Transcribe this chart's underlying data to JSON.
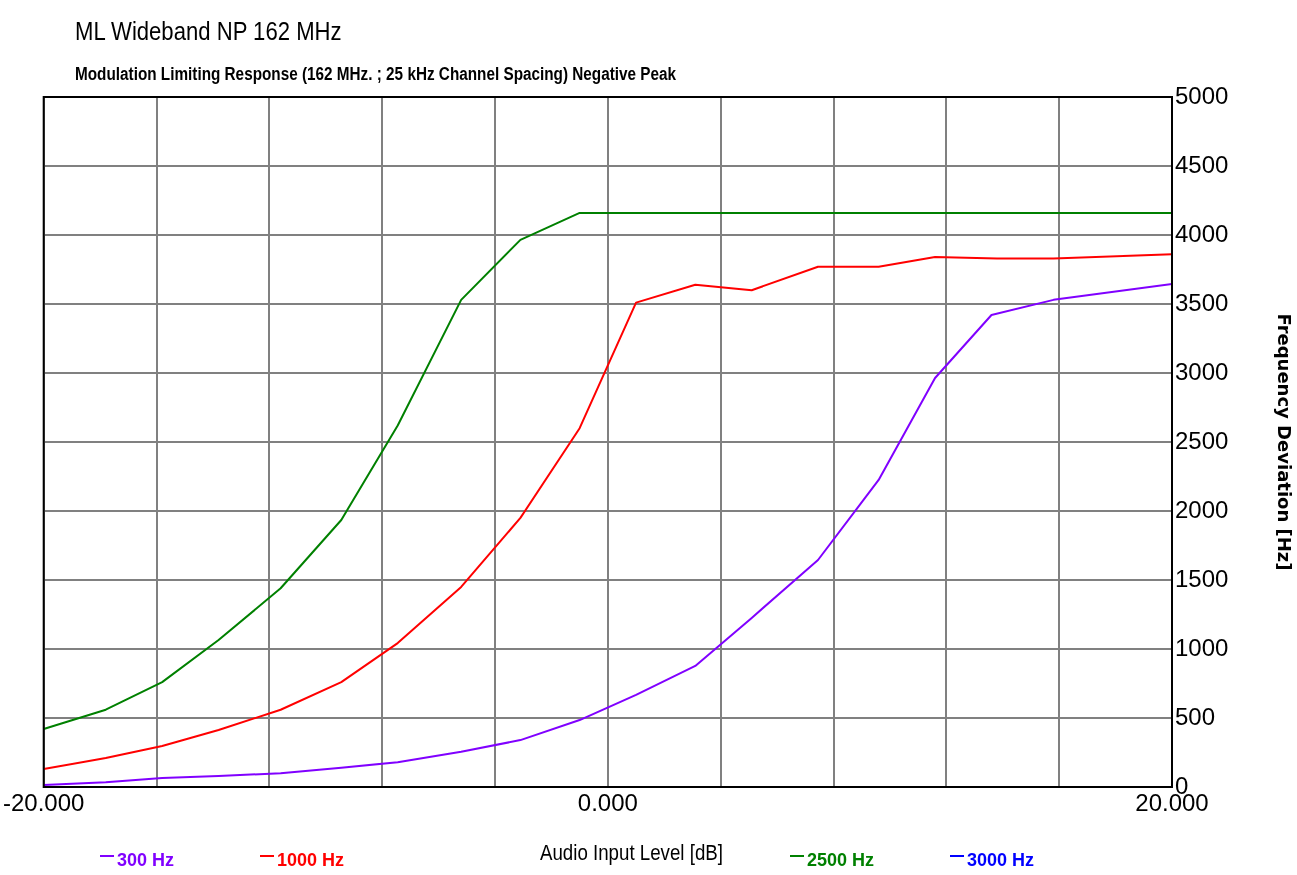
{
  "chart_data": {
    "type": "line",
    "title": "ML Wideband NP 162 MHz",
    "subtitle": "Modulation Limiting Response (162 MHz. ; 25 kHz Channel Spacing) Negative Peak",
    "xlabel": "Audio Input Level [dB]",
    "ylabel": "Frequency Deviation [Hz]",
    "xlim": [
      -20,
      20
    ],
    "xticks": [
      {
        "value": -20,
        "label": "-20.000"
      },
      {
        "value": -16,
        "label": null
      },
      {
        "value": -12,
        "label": null
      },
      {
        "value": -8,
        "label": null
      },
      {
        "value": -4,
        "label": null
      },
      {
        "value": 0,
        "label": "0.000"
      },
      {
        "value": 4,
        "label": null
      },
      {
        "value": 8,
        "label": null
      },
      {
        "value": 12,
        "label": null
      },
      {
        "value": 16,
        "label": null
      },
      {
        "value": 20,
        "label": "20.000"
      }
    ],
    "ylim": [
      0,
      5000
    ],
    "yticks": [
      0,
      500,
      1000,
      1500,
      2000,
      2500,
      3000,
      3500,
      4000,
      4500,
      5000
    ],
    "grid": true,
    "legend": "bottom",
    "marker": "none",
    "series": [
      {
        "name": "300 Hz",
        "color": "#8000ff",
        "x": [
          -20,
          -17.8,
          -15.8,
          -13.8,
          -11.6,
          -9.45,
          -7.45,
          -5.2,
          -3.1,
          -1,
          1,
          3.1,
          5.1,
          7.45,
          9.6,
          11.6,
          13.6,
          15.8,
          20
        ],
        "values": [
          15,
          35,
          65,
          80,
          100,
          140,
          180,
          255,
          340,
          485,
          667,
          877,
          1225,
          1645,
          2225,
          2964,
          3420,
          3530,
          3645
        ]
      },
      {
        "name": "1000 Hz",
        "color": "#ff0000",
        "x": [
          -20,
          -17.8,
          -15.8,
          -13.8,
          -11.6,
          -9.45,
          -7.45,
          -5.2,
          -3.1,
          -1,
          1,
          3.1,
          5.1,
          7.45,
          9.6,
          11.6,
          13.8,
          15.8,
          20
        ],
        "values": [
          130,
          210,
          297,
          413,
          560,
          760,
          1043,
          1450,
          1950,
          2600,
          3510,
          3640,
          3600,
          3770,
          3770,
          3840,
          3830,
          3830,
          3860
        ]
      },
      {
        "name": "2500 Hz",
        "color": "#008000",
        "x": [
          -20,
          -17.8,
          -15.8,
          -13.8,
          -11.6,
          -9.45,
          -7.45,
          -5.2,
          -3.1,
          -1,
          20
        ],
        "values": [
          420,
          560,
          760,
          1065,
          1440,
          1935,
          2620,
          3530,
          3965,
          4160,
          4160
        ]
      },
      {
        "name": "3000 Hz",
        "color": "#0000ff"
      }
    ]
  }
}
